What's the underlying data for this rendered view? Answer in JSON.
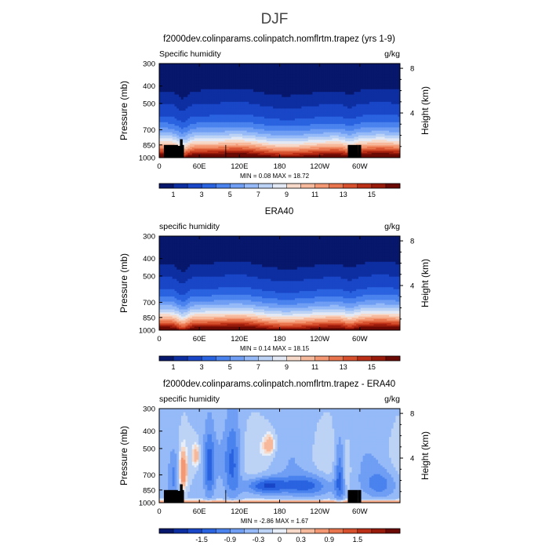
{
  "figure": {
    "title": "DJF"
  },
  "colors": {
    "abs_levels": [
      "#07176b",
      "#0d2ea1",
      "#1846c7",
      "#2a63e0",
      "#4a82ee",
      "#6f9ef4",
      "#95baf7",
      "#bcd3f6",
      "#e3e9f4",
      "#f7d9c9",
      "#f7b99b",
      "#f39873",
      "#e8744d",
      "#d6502e",
      "#bb2f17",
      "#971a0b",
      "#6b0a05"
    ],
    "diff_levels": [
      "#07176b",
      "#0d2ea1",
      "#1846c7",
      "#2a63e0",
      "#4a82ee",
      "#6f9ef4",
      "#95baf7",
      "#bcd3f6",
      "#e8eef8",
      "#f7d9c9",
      "#f7b99b",
      "#f39873",
      "#e8744d",
      "#d6502e",
      "#bb2f17",
      "#971a0b",
      "#6b0a05"
    ],
    "topography": "#000000"
  },
  "chart_data": [
    {
      "type": "heatmap",
      "title": "f2000dev.colinparams.colinpatch.nomflrtm.trapez (yrs 1-9)",
      "left_label": "Specific humidity",
      "right_label": "g/kg",
      "ylabel": "Pressure (mb)",
      "y2label": "Height (km)",
      "x_ticks": [
        "0",
        "60E",
        "120E",
        "180",
        "120W",
        "60W"
      ],
      "x_tick_lon": [
        0,
        60,
        120,
        180,
        240,
        300
      ],
      "x_range": [
        0,
        360
      ],
      "y_ticks": [
        "300",
        "400",
        "500",
        "700",
        "850",
        "1000"
      ],
      "y_tick_p": [
        300,
        400,
        500,
        700,
        850,
        1000
      ],
      "y_range": [
        300,
        1000
      ],
      "y_scale": "log",
      "y2_ticks": [
        "8",
        "4"
      ],
      "y2_tick_km": [
        8,
        4
      ],
      "stats": "MIN =    0.08   MAX =   18.72",
      "min": 0.08,
      "max": 18.72,
      "colorbar_labels": [
        "1",
        "3",
        "5",
        "7",
        "9",
        "11",
        "13",
        "15"
      ],
      "colorbar_levels": [
        0.5,
        1,
        2,
        3,
        4,
        5,
        6,
        7,
        8,
        9,
        10,
        11,
        12,
        13,
        14,
        15,
        16
      ],
      "field": "model",
      "topography": true
    },
    {
      "type": "heatmap",
      "title": "ERA40",
      "left_label": "specific humidity",
      "right_label": "g/kg",
      "ylabel": "Pressure (mb)",
      "y2label": "Height (km)",
      "x_ticks": [
        "0",
        "60E",
        "120E",
        "180",
        "120W",
        "60W"
      ],
      "x_tick_lon": [
        0,
        60,
        120,
        180,
        240,
        300
      ],
      "x_range": [
        0,
        360
      ],
      "y_ticks": [
        "300",
        "400",
        "500",
        "700",
        "850",
        "1000"
      ],
      "y_tick_p": [
        300,
        400,
        500,
        700,
        850,
        1000
      ],
      "y_range": [
        300,
        1000
      ],
      "y_scale": "log",
      "y2_ticks": [
        "8",
        "4"
      ],
      "y2_tick_km": [
        8,
        4
      ],
      "stats": "MIN =    0.14   MAX =   18.15",
      "min": 0.14,
      "max": 18.15,
      "colorbar_labels": [
        "1",
        "3",
        "5",
        "7",
        "9",
        "11",
        "13",
        "15"
      ],
      "colorbar_levels": [
        0.5,
        1,
        2,
        3,
        4,
        5,
        6,
        7,
        8,
        9,
        10,
        11,
        12,
        13,
        14,
        15,
        16
      ],
      "field": "obs",
      "topography": false
    },
    {
      "type": "heatmap",
      "title": "f2000dev.colinparams.colinpatch.nomflrtm.trapez - ERA40",
      "left_label": "specific humidity",
      "right_label": "g/kg",
      "ylabel": "Pressure (mb)",
      "y2label": "Height (km)",
      "x_ticks": [
        "0",
        "60E",
        "120E",
        "180",
        "120W",
        "60W"
      ],
      "x_tick_lon": [
        0,
        60,
        120,
        180,
        240,
        300
      ],
      "x_range": [
        0,
        360
      ],
      "y_ticks": [
        "300",
        "400",
        "500",
        "700",
        "850",
        "1000"
      ],
      "y_tick_p": [
        300,
        400,
        500,
        700,
        850,
        1000
      ],
      "y_range": [
        300,
        1000
      ],
      "y_scale": "log",
      "y2_ticks": [
        "8",
        "4"
      ],
      "y2_tick_km": [
        8,
        4
      ],
      "stats": "MIN =   -2.86   MAX =    1.67",
      "min": -2.86,
      "max": 1.67,
      "colorbar_labels": [
        "-1.5",
        "-0.9",
        "-0.3",
        "0",
        "0.3",
        "0.9",
        "1.5"
      ],
      "colorbar_levels": [
        -2.1,
        -1.8,
        -1.5,
        -1.2,
        -0.9,
        -0.6,
        -0.3,
        -0.1,
        0,
        0.1,
        0.3,
        0.6,
        0.9,
        1.2,
        1.5,
        1.8,
        2.1
      ],
      "field": "diff",
      "topography": true
    }
  ]
}
